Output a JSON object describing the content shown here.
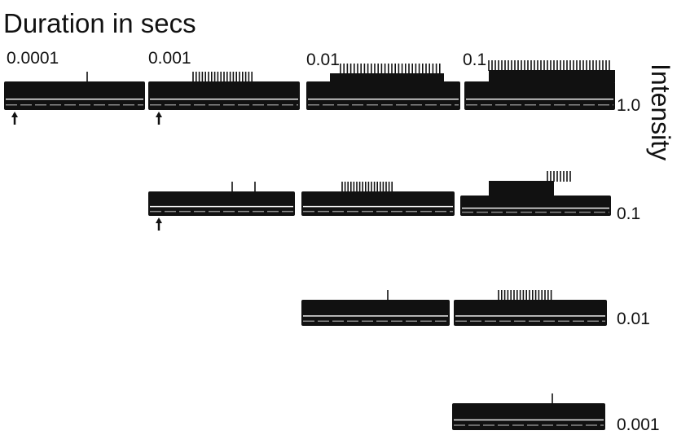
{
  "header": {
    "title": "Duration in secs"
  },
  "duration_labels": [
    "0.0001",
    "0.001",
    "0.01",
    "0.1"
  ],
  "intensity_axis_label": "Intensity",
  "intensity_labels": [
    "1.0",
    "0.1",
    "0.01",
    "0.001"
  ]
}
